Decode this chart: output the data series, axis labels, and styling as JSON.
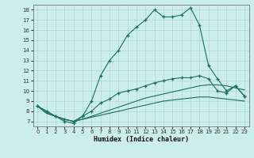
{
  "xlabel": "Humidex (Indice chaleur)",
  "xlim": [
    -0.5,
    23.5
  ],
  "ylim": [
    6.5,
    18.5
  ],
  "xticks": [
    0,
    1,
    2,
    3,
    4,
    5,
    6,
    7,
    8,
    9,
    10,
    11,
    12,
    13,
    14,
    15,
    16,
    17,
    18,
    19,
    20,
    21,
    22,
    23
  ],
  "yticks": [
    7,
    8,
    9,
    10,
    11,
    12,
    13,
    14,
    15,
    16,
    17,
    18
  ],
  "bg_color": "#cceee8",
  "line_color": "#1a6e62",
  "grid_color": "#aad8d0",
  "line1_marked": [
    8.5,
    8.0,
    7.5,
    7.0,
    6.8,
    7.5,
    9.0,
    11.5,
    13.0,
    14.0,
    15.5,
    16.3,
    17.0,
    18.0,
    17.3,
    17.3,
    17.5,
    18.2,
    16.5,
    12.5,
    11.2,
    10.0,
    10.5,
    9.5
  ],
  "line2_marked": [
    8.5,
    8.0,
    7.5,
    7.2,
    7.0,
    7.5,
    8.0,
    8.8,
    9.2,
    9.8,
    10.0,
    10.2,
    10.5,
    10.8,
    11.0,
    11.2,
    11.3,
    11.3,
    11.5,
    11.2,
    10.0,
    9.8,
    10.5,
    9.5
  ],
  "line3_plain": [
    8.5,
    7.8,
    7.5,
    7.2,
    7.0,
    7.2,
    7.5,
    7.8,
    8.1,
    8.4,
    8.7,
    9.0,
    9.3,
    9.5,
    9.7,
    9.9,
    10.1,
    10.3,
    10.5,
    10.6,
    10.6,
    10.5,
    10.3,
    10.1
  ],
  "line4_plain": [
    8.5,
    7.8,
    7.5,
    7.2,
    7.0,
    7.2,
    7.4,
    7.6,
    7.8,
    8.0,
    8.2,
    8.4,
    8.6,
    8.8,
    9.0,
    9.1,
    9.2,
    9.3,
    9.4,
    9.4,
    9.3,
    9.2,
    9.1,
    9.0
  ]
}
